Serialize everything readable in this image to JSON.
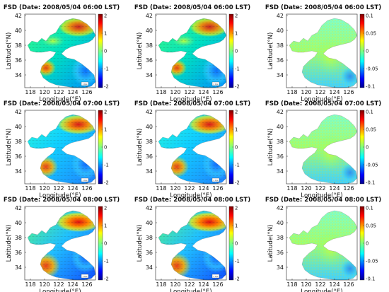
{
  "figure": {
    "panels": [
      {
        "title": "FSD (Date: 2008/05/04 06:00 LST)",
        "variant": "a",
        "time": 0,
        "ticks": [
          "2",
          "1",
          "0",
          "-1",
          "-2"
        ]
      },
      {
        "title": "FSD (Date: 2008/05/04 06:00 LST)",
        "variant": "b",
        "time": 0,
        "ticks": [
          "2",
          "1",
          "0",
          "-1",
          "-2"
        ]
      },
      {
        "title": "FSD (Date: 2008/05/04 06:00 LST)",
        "variant": "c",
        "time": 0,
        "ticks": [
          "0.1",
          "0.05",
          "0",
          "-0.05",
          "-0.1"
        ]
      },
      {
        "title": "FSD (Date: 2008/05/04 07:00 LST)",
        "variant": "a",
        "time": 1,
        "ticks": [
          "2",
          "1",
          "0",
          "-1",
          "-2"
        ]
      },
      {
        "title": "FSD (Date: 2008/05/04 07:00 LST)",
        "variant": "b",
        "time": 1,
        "ticks": [
          "2",
          "1",
          "0",
          "-1",
          "-2"
        ]
      },
      {
        "title": "FSD (Date: 2008/05/04 07:00 LST)",
        "variant": "c",
        "time": 1,
        "ticks": [
          "0.1",
          "0.05",
          "0",
          "-0.05",
          "-0.1"
        ]
      },
      {
        "title": "FSD (Date: 2008/05/04 08:00 LST)",
        "variant": "a",
        "time": 2,
        "ticks": [
          "2",
          "1",
          "0",
          "-1",
          "-2"
        ]
      },
      {
        "title": "FSD (Date: 2008/05/04 08:00 LST)",
        "variant": "b",
        "time": 2,
        "ticks": [
          "2",
          "1",
          "0",
          "-1",
          "-2"
        ]
      },
      {
        "title": "FSD (Date: 2008/05/04 08:00 LST)",
        "variant": "c",
        "time": 2,
        "ticks": [
          "0.1",
          "0.05",
          "0",
          "-0.05",
          "-0.1"
        ]
      }
    ],
    "xticks": [
      "118",
      "120",
      "122",
      "124",
      "126"
    ],
    "yticks": [
      "42",
      "40",
      "38",
      "36",
      "34"
    ],
    "xlabel": "Longitude(°E)",
    "ylabel": "Latitude(°N)",
    "legend_box_text": "1 m/s"
  }
}
